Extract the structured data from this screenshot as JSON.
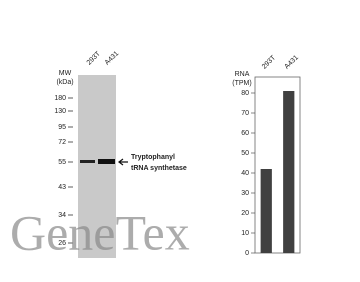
{
  "blot": {
    "mw_label": [
      "MW",
      "(kDa)"
    ],
    "lanes": [
      "293T",
      "A431"
    ],
    "markers": [
      180,
      130,
      95,
      72,
      55,
      43,
      34,
      26
    ],
    "target": [
      "Tryptophanyl",
      "tRNA synthetase"
    ]
  },
  "watermark": "GeneTex",
  "chart_data": {
    "type": "bar",
    "ylabel": [
      "RNA",
      "(TPM)"
    ],
    "categories": [
      "293T",
      "A431"
    ],
    "values": [
      42,
      81
    ],
    "color": "#404040",
    "ylim": [
      0,
      88
    ],
    "yticks": [
      0,
      10,
      20,
      30,
      40,
      50,
      60,
      70,
      80
    ],
    "grid": false
  }
}
